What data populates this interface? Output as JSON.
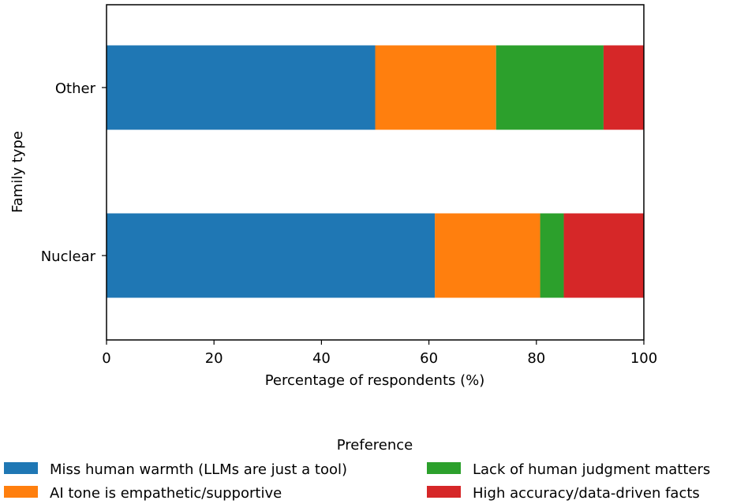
{
  "chart_data": {
    "type": "bar",
    "orientation": "horizontal",
    "stacked": true,
    "categories": [
      "Nuclear",
      "Other"
    ],
    "series": [
      {
        "name": "Miss human warmth (LLMs are just a tool)",
        "values": [
          61.1,
          50.0
        ],
        "color": "#1f77b4"
      },
      {
        "name": "AI tone is empathetic/supportive",
        "values": [
          19.6,
          22.5
        ],
        "color": "#ff7f0e"
      },
      {
        "name": "Lack of human judgment matters",
        "values": [
          4.4,
          20.0
        ],
        "color": "#2ca02c"
      },
      {
        "name": "High accuracy/data-driven facts",
        "values": [
          14.9,
          7.5
        ],
        "color": "#d62728"
      }
    ],
    "xlabel": "Percentage of respondents (%)",
    "ylabel": "Family type",
    "xlim": [
      0,
      100
    ],
    "xticks": [
      "0",
      "20",
      "40",
      "60",
      "80",
      "100"
    ],
    "grid": false,
    "legend": {
      "title": "Preference",
      "placement": "bottom"
    }
  }
}
